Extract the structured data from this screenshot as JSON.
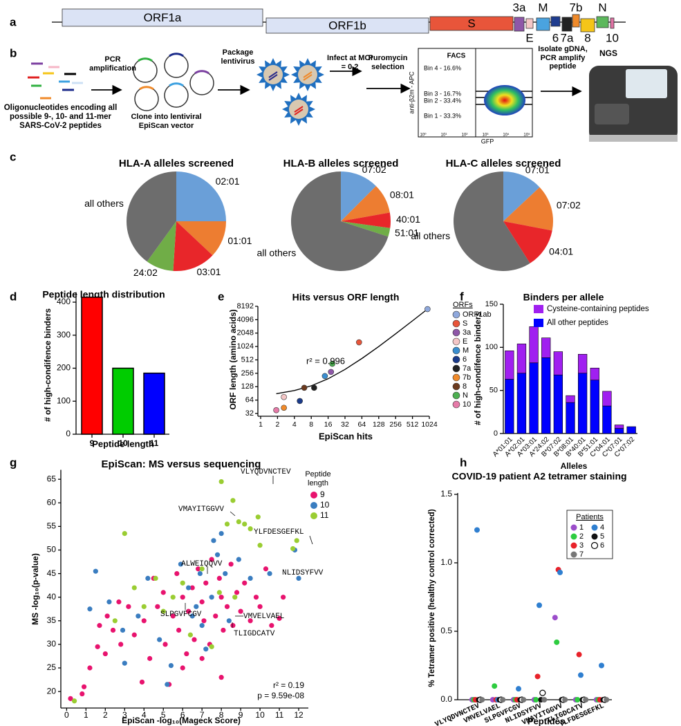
{
  "panel_labels": [
    "a",
    "b",
    "c",
    "d",
    "e",
    "f",
    "g",
    "h"
  ],
  "genome": {
    "genes": [
      "ORF1a",
      "ORF1b",
      "S",
      "3a",
      "E",
      "M",
      "6",
      "7a",
      "7b",
      "8",
      "N",
      "10"
    ]
  },
  "workflow": {
    "oligos": "Oligonucleotides encoding all possible 9-, 10- and 11-mer SARS-CoV-2 peptides",
    "pcr": "PCR amplification",
    "clone": "Clone into lentiviral EpiScan vector",
    "package": "Package lentivirus",
    "infect": "Infect at MOI = 0.2",
    "puromycin": "Puromycin selection",
    "facs": {
      "title": "FACS",
      "bins": [
        "Bin 4 - 16.6%",
        "Bin 3 - 16.7%",
        "Bin 2 - 33.4%",
        "Bin 1 - 33.3%"
      ],
      "y_label": "anti-β2m - APC",
      "x_label": "GFP",
      "ticks": [
        "10⁰",
        "10¹",
        "10²",
        "10³",
        "10⁴",
        "10⁵"
      ]
    },
    "isolate": "Isolate gDNA, PCR amplify peptide",
    "ngs": "NGS"
  },
  "chart_data": [
    {
      "type": "pie",
      "title": "HLA-A alleles screened",
      "categories": [
        "02:01",
        "01:01",
        "03:01",
        "24:02",
        "all others"
      ],
      "values": [
        25,
        12,
        14,
        9,
        40
      ],
      "colors": [
        "#6a9fd8",
        "#ed7d31",
        "#e8262a",
        "#70ad47",
        "#6d6d6d"
      ]
    },
    {
      "type": "pie",
      "title": "HLA-B alleles screened",
      "categories": [
        "07:02",
        "08:01",
        "40:01",
        "51:01",
        "all others"
      ],
      "values": [
        12.5,
        9.7,
        5,
        2.8,
        70
      ],
      "colors": [
        "#6a9fd8",
        "#ed7d31",
        "#e8262a",
        "#70ad47",
        "#6d6d6d"
      ]
    },
    {
      "type": "pie",
      "title": "HLA-C alleles screened",
      "categories": [
        "07:01",
        "07:02",
        "04:01",
        "all others"
      ],
      "values": [
        13,
        15,
        13,
        59
      ],
      "colors": [
        "#6a9fd8",
        "#ed7d31",
        "#e8262a",
        "#6d6d6d"
      ]
    },
    {
      "type": "bar",
      "title": "Peptide length distribution",
      "x_label": "Peptide length",
      "y_label": "# of high-condifence binders",
      "categories": [
        "9",
        "10",
        "11"
      ],
      "values": [
        415,
        200,
        185
      ],
      "colors": [
        "#ff0000",
        "#00cc00",
        "#0000ff"
      ],
      "ylim": [
        0,
        430
      ],
      "yticks": [
        0,
        100,
        200,
        300,
        400
      ]
    },
    {
      "type": "scatter",
      "title": "Hits versus ORF length",
      "x_label": "EpiScan hits",
      "y_label": "ORF length (amino acids)",
      "xscale": "log2",
      "yscale": "log2",
      "xlim": [
        1,
        1024
      ],
      "xticks": [
        1,
        2,
        4,
        8,
        16,
        32,
        64,
        128,
        256,
        512,
        1024
      ],
      "ylim": [
        32,
        8192
      ],
      "yticks": [
        32,
        64,
        128,
        256,
        512,
        1024,
        2048,
        4096,
        8192
      ],
      "legend_title": "ORFs",
      "series": [
        {
          "name": "ORF1ab",
          "color": "#8fa8dc",
          "x": [
            950
          ],
          "values": [
            7096
          ]
        },
        {
          "name": "S",
          "color": "#e8553a",
          "x": [
            57
          ],
          "values": [
            1273
          ]
        },
        {
          "name": "3a",
          "color": "#8e57a8",
          "x": [
            18
          ],
          "values": [
            275
          ]
        },
        {
          "name": "E",
          "color": "#f4c6c6",
          "x": [
            2.6
          ],
          "values": [
            75
          ]
        },
        {
          "name": "M",
          "color": "#3a8ed0",
          "x": [
            14
          ],
          "values": [
            222
          ]
        },
        {
          "name": "6",
          "color": "#1a3a8a",
          "x": [
            5
          ],
          "values": [
            61
          ]
        },
        {
          "name": "7a",
          "color": "#222222",
          "x": [
            9
          ],
          "values": [
            121
          ]
        },
        {
          "name": "7b",
          "color": "#f08a2a",
          "x": [
            2.6
          ],
          "values": [
            43
          ]
        },
        {
          "name": "8",
          "color": "#6b3a1e",
          "x": [
            6
          ],
          "values": [
            121
          ]
        },
        {
          "name": "N",
          "color": "#4caf50",
          "x": [
            19
          ],
          "values": [
            419
          ]
        },
        {
          "name": "10",
          "color": "#e67aa8",
          "x": [
            1.9
          ],
          "values": [
            38
          ]
        }
      ],
      "fit": {
        "x": [
          1.9,
          4,
          8,
          16,
          32,
          64,
          128,
          256,
          512,
          950
        ],
        "values": [
          89,
          105,
          134,
          193,
          312,
          549,
          1022,
          1969,
          3864,
          7105
        ]
      },
      "annotation": "r² = 0.996"
    },
    {
      "type": "bar",
      "stacked": true,
      "title": "Binders per allele",
      "x_label": "Alleles",
      "y_label": "# of high-condifence binders",
      "categories": [
        "A*01:01",
        "A*02:01",
        "A*03:01",
        "A*24:02",
        "B*07:02",
        "B*08:01",
        "B*40:01",
        "B*51:01",
        "C*04:01",
        "C*07:01",
        "C*07:02"
      ],
      "series": [
        {
          "name": "All other peptides",
          "color": "#0000ff",
          "values": [
            63,
            70,
            82,
            88,
            68,
            36,
            70,
            62,
            32,
            6,
            8
          ]
        },
        {
          "name": "Cysteine-containing peptides",
          "color": "#a020f0",
          "values": [
            33,
            34,
            42,
            23,
            27,
            8,
            22,
            14,
            17,
            4,
            0
          ]
        }
      ],
      "ylim": [
        0,
        150
      ],
      "yticks": [
        0,
        50,
        100,
        150
      ]
    },
    {
      "type": "scatter",
      "title": "EpiScan: MS versus sequencing",
      "x_label": "EpiScan -log₁₀(Mageck Score)",
      "y_label": "MS -log₁₀(p-value)",
      "xlim": [
        -0.3,
        12.5
      ],
      "xticks": [
        0,
        1,
        2,
        3,
        4,
        5,
        6,
        7,
        8,
        9,
        10,
        11,
        12
      ],
      "ylim": [
        16.5,
        67
      ],
      "yticks": [
        20,
        25,
        30,
        35,
        40,
        45,
        50,
        55,
        60,
        65
      ],
      "legend_title": "Peptide length",
      "series": [
        {
          "name": "9",
          "color": "#e8136e",
          "x": [
            0.2,
            0.9,
            0.8,
            1.2,
            1.6,
            1.7,
            2.0,
            2.1,
            2.4,
            2.7,
            2.8,
            3.2,
            3.5,
            3.9,
            4.0,
            4.3,
            4.5,
            4.7,
            5.0,
            5.1,
            5.3,
            5.5,
            5.7,
            5.8,
            6.0,
            6.2,
            6.3,
            6.5,
            6.6,
            6.8,
            7.0,
            7.1,
            7.2,
            7.4,
            7.5,
            7.7,
            7.9,
            8.0,
            8.1,
            8.3,
            8.5,
            8.6,
            8.8,
            9.0,
            9.2,
            9.5,
            9.8,
            10.0,
            10.3,
            10.6,
            11.0,
            11.2,
            8.0,
            7.0,
            6.0
          ],
          "values": [
            18.5,
            21,
            19.5,
            25,
            29.5,
            34,
            28,
            36,
            33,
            39,
            30,
            38,
            32,
            22,
            35,
            27,
            44,
            38,
            41,
            30,
            21.5,
            36,
            45,
            33,
            40,
            28,
            37,
            42,
            31,
            46,
            39,
            35,
            43,
            30,
            48,
            36,
            44,
            40,
            33,
            38,
            47,
            34,
            41,
            37,
            43,
            35,
            40,
            38,
            46,
            34,
            35.5,
            40,
            23,
            27,
            25
          ]
        },
        {
          "name": "10",
          "color": "#3a7dc0",
          "x": [
            1.2,
            1.5,
            2.2,
            2.9,
            3.0,
            3.7,
            4.2,
            4.8,
            5.2,
            5.4,
            5.9,
            6.3,
            6.7,
            6.9,
            7.2,
            7.5,
            7.6,
            7.8,
            8.0,
            8.2,
            8.4,
            8.9,
            9.5,
            10.5,
            11.8,
            12.0,
            7.0,
            6.5
          ],
          "values": [
            37.5,
            45.5,
            39,
            33,
            26,
            36,
            44,
            31,
            21.5,
            25.5,
            47,
            42,
            38,
            45,
            29,
            40,
            52,
            49,
            53.5,
            45,
            35,
            48,
            44,
            45,
            50,
            44,
            34,
            36
          ]
        },
        {
          "name": "11",
          "color": "#9acd32",
          "x": [
            0.4,
            3.0,
            3.5,
            2.5,
            4.0,
            4.6,
            5.0,
            5.5,
            6.0,
            6.4,
            7.0,
            7.5,
            8.0,
            8.3,
            8.6,
            8.9,
            9.2,
            9.5,
            9.9,
            10.0,
            11.7,
            11.9,
            7.9,
            8.7
          ],
          "values": [
            18,
            53.5,
            42,
            35,
            38,
            44,
            37,
            40,
            43,
            32,
            46,
            29.5,
            64.5,
            55.5,
            60.5,
            56,
            55.5,
            54.5,
            57,
            51,
            50.3,
            52,
            41,
            40
          ]
        }
      ],
      "annotations": [
        "VLYQDVNCTEV",
        "VMAYITGGVV",
        "YLFDESGEFKL",
        "ALWEIQQVV",
        "NLIDSYFVV",
        "SLPGVFCGV",
        "VMVELVAEL",
        "TLIGDCATV"
      ],
      "stats": [
        "r² = 0.19",
        "p = 9.59e-08"
      ]
    },
    {
      "type": "strip",
      "title": "COVID-19 patient A2 tetramer staining",
      "x_label": "Peptides",
      "y_label": "% Tetramer positive (healthy control corrected)",
      "categories": [
        "VLYQDVNCTEV",
        "VMVELVAEL",
        "SLPGVFCGV",
        "NLIDSYFVV",
        "VMAYITGGVV",
        "TLIGDCATV",
        "YLFDESGEFKL"
      ],
      "ylim": [
        0,
        1.5
      ],
      "yticks": [
        {
          "value": 0,
          "label": "0.0"
        },
        0.5,
        {
          "value": 1,
          "label": "1.0"
        },
        1.5
      ],
      "legend_title": "Patients",
      "series": [
        {
          "name": "1",
          "color": "#9b4dca",
          "values": [
            0,
            0,
            0,
            0,
            0.6,
            0,
            0
          ]
        },
        {
          "name": "2",
          "color": "#2ecc40",
          "values": [
            0,
            0.1,
            0,
            0,
            0.42,
            0,
            0
          ]
        },
        {
          "name": "3",
          "color": "#e8222a",
          "values": [
            0,
            0,
            0,
            0.17,
            0.95,
            0.33,
            0
          ]
        },
        {
          "name": "4",
          "color": "#2f7fd0",
          "values": [
            1.24,
            0,
            0.08,
            0.69,
            0.93,
            0.18,
            0.25
          ]
        },
        {
          "name": "5",
          "color": "#111111",
          "values": [
            0,
            0,
            0,
            0,
            0,
            0,
            0
          ]
        },
        {
          "name": "6",
          "color": "#ffffff",
          "values": [
            0,
            0,
            0,
            0.05,
            0,
            0,
            0
          ]
        },
        {
          "name": "7",
          "color": "#777777",
          "values": [
            0,
            0,
            0,
            0,
            0,
            0,
            0
          ]
        }
      ]
    }
  ]
}
